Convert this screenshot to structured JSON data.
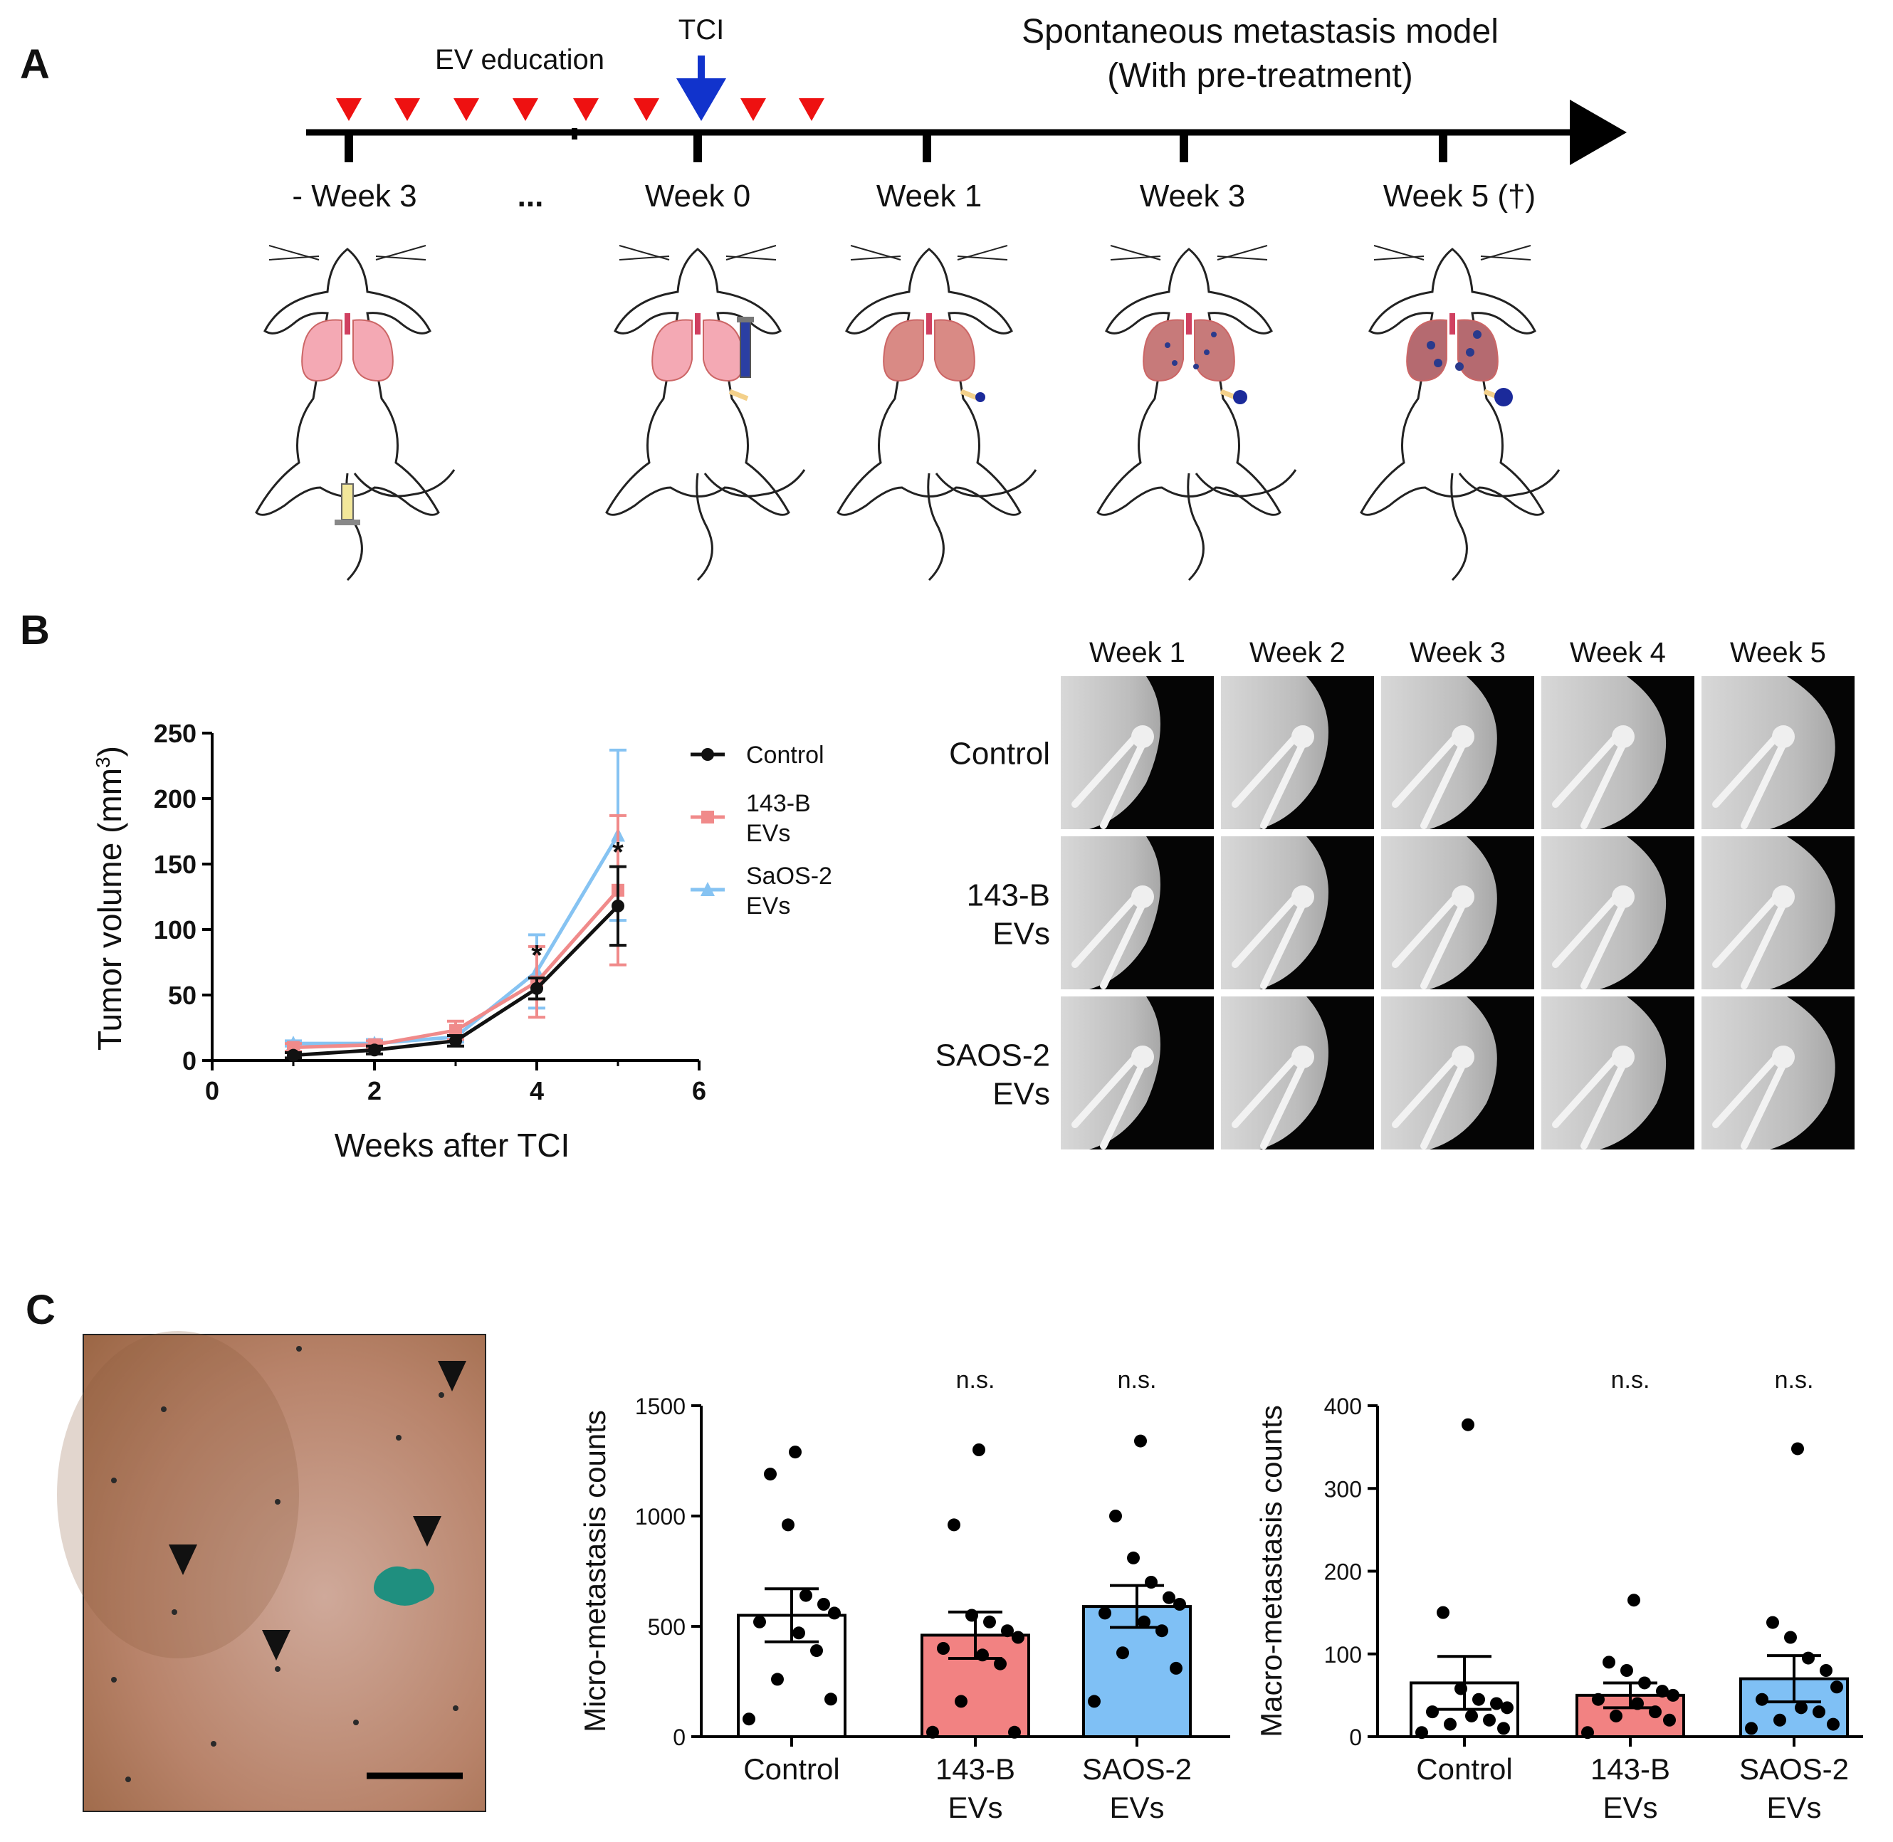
{
  "panels": {
    "a": "A",
    "b": "B",
    "c": "C"
  },
  "timeline": {
    "title_line1": "Spontaneous metastasis model",
    "title_line2": "(With pre-treatment)",
    "ev_education": "EV education",
    "tci": "TCI",
    "ellipsis": "...",
    "weeks": [
      "- Week 3",
      "Week 0",
      "Week 1",
      "Week 3",
      "Week 5 (†)"
    ],
    "colors": {
      "education_arrow": "#ee1111",
      "tci_arrow": "#1133cc"
    }
  },
  "tumor_chart": {
    "type": "line",
    "title": "",
    "xlabel": "Weeks after TCI",
    "ylabel_main": "Tumor volume (mm",
    "ylabel_sup": "3",
    "ylabel_close": ")",
    "xlim": [
      0,
      6
    ],
    "ylim": [
      0,
      250
    ],
    "xticks": [
      "0",
      "2",
      "4",
      "6"
    ],
    "yticks": [
      "0",
      "50",
      "100",
      "150",
      "200",
      "250"
    ],
    "x": [
      1,
      2,
      3,
      4,
      5
    ],
    "series": [
      {
        "name_line1": "Control",
        "name_line2": "",
        "marker": "circle",
        "color": "#111111",
        "values": [
          4,
          8,
          15,
          55,
          118
        ],
        "errors": [
          2,
          3,
          4,
          8,
          30
        ]
      },
      {
        "name_line1": "143-B",
        "name_line2": " EVs",
        "marker": "square",
        "color": "#f08a8a",
        "values": [
          10,
          12,
          23,
          60,
          130
        ],
        "errors": [
          3,
          3,
          7,
          27,
          57
        ]
      },
      {
        "name_line1": "SaOS-2",
        "name_line2": "EVs",
        "marker": "triangle",
        "color": "#86c3f2",
        "values": [
          13,
          13,
          18,
          68,
          172
        ],
        "errors": [
          2,
          3,
          4,
          28,
          65
        ]
      }
    ],
    "annotations": [
      "*",
      "*"
    ]
  },
  "xray_grid": {
    "columns": [
      "Week 1",
      "Week 2",
      "Week 3",
      "Week 4",
      "Week 5"
    ],
    "rows": [
      {
        "line1": "Control",
        "line2": ""
      },
      {
        "line1": "143-B",
        "line2": "EVs"
      },
      {
        "line1": "SAOS-2",
        "line2": "EVs"
      }
    ]
  },
  "micro_chart": {
    "type": "bar",
    "ylabel": "Micro-metastasis counts",
    "ylim": [
      0,
      1500
    ],
    "yticks": [
      "0",
      "500",
      "1000",
      "1500"
    ],
    "categories": [
      {
        "line1": "Control",
        "line2": ""
      },
      {
        "line1": "143-B",
        "line2": "EVs"
      },
      {
        "line1": "SAOS-2",
        "line2": "EVs"
      }
    ],
    "values": [
      550,
      460,
      590
    ],
    "sem": [
      120,
      105,
      95
    ],
    "significance": [
      "",
      "n.s.",
      "n.s."
    ],
    "colors": [
      "#ffffff",
      "#f28282",
      "#7fc0f5"
    ],
    "points": [
      [
        1290,
        1190,
        960,
        640,
        600,
        560,
        520,
        470,
        390,
        260,
        170,
        80
      ],
      [
        1300,
        960,
        550,
        520,
        480,
        450,
        400,
        370,
        330,
        160,
        20,
        20
      ],
      [
        1340,
        1000,
        810,
        700,
        630,
        600,
        560,
        520,
        480,
        380,
        310,
        160
      ]
    ]
  },
  "macro_chart": {
    "type": "bar",
    "ylabel": "Macro-metastasis counts",
    "ylim": [
      0,
      400
    ],
    "yticks": [
      "0",
      "100",
      "200",
      "300",
      "400"
    ],
    "categories": [
      {
        "line1": "Control",
        "line2": ""
      },
      {
        "line1": "143-B",
        "line2": "EVs"
      },
      {
        "line1": "SAOS-2",
        "line2": "EVs"
      }
    ],
    "values": [
      65,
      50,
      70
    ],
    "sem": [
      32,
      15,
      28
    ],
    "significance": [
      "",
      "n.s.",
      "n.s."
    ],
    "colors": [
      "#ffffff",
      "#f28282",
      "#7fc0f5"
    ],
    "points": [
      [
        377,
        150,
        58,
        45,
        40,
        35,
        30,
        25,
        20,
        15,
        10,
        5
      ],
      [
        165,
        90,
        80,
        65,
        55,
        50,
        45,
        40,
        30,
        25,
        20,
        5
      ],
      [
        348,
        138,
        120,
        95,
        80,
        60,
        45,
        35,
        30,
        20,
        15,
        10
      ]
    ]
  }
}
